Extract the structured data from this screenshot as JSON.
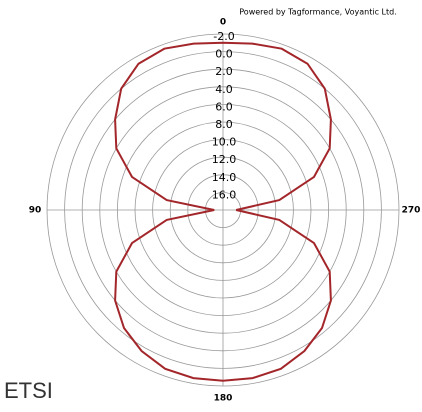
{
  "chart_data": {
    "type": "polar",
    "credit": "Powered by Tagformance, Voyantic Ltd.",
    "annotation": "ETSI",
    "rlim": [
      18,
      -2
    ],
    "rticks": [
      {
        "value": -2,
        "label": "-2.0"
      },
      {
        "value": 0,
        "label": "0.0"
      },
      {
        "value": 2,
        "label": "2.0"
      },
      {
        "value": 4,
        "label": "4.0"
      },
      {
        "value": 6,
        "label": "6.0"
      },
      {
        "value": 8,
        "label": "8.0"
      },
      {
        "value": 10,
        "label": "10.0"
      },
      {
        "value": 12,
        "label": "12.0"
      },
      {
        "value": 14,
        "label": "14.0"
      },
      {
        "value": 16,
        "label": "16.0"
      }
    ],
    "angle_ticks": [
      0,
      90,
      180,
      270
    ],
    "direction": "counterclockwise",
    "series": [
      {
        "name": "ETSI",
        "color": "#a3262a",
        "angles": [
          0,
          10,
          20,
          30,
          40,
          50,
          60,
          70,
          80,
          90,
          100,
          110,
          120,
          130,
          140,
          150,
          160,
          170,
          180,
          190,
          200,
          210,
          220,
          230,
          240,
          250,
          260,
          270,
          280,
          290,
          300,
          310,
          320,
          330,
          340,
          350
        ],
        "values": [
          -1.0,
          -1.2,
          -1.5,
          -1.2,
          0.0,
          2.0,
          4.0,
          7.0,
          11.5,
          17.0,
          11.5,
          7.0,
          4.0,
          2.0,
          0.5,
          -0.5,
          -1.2,
          -1.4,
          -1.4,
          -1.4,
          -1.2,
          -0.5,
          0.5,
          2.0,
          4.0,
          7.0,
          11.5,
          16.5,
          11.5,
          7.0,
          4.0,
          2.0,
          0.0,
          -1.2,
          -1.5,
          -1.2
        ]
      }
    ]
  }
}
